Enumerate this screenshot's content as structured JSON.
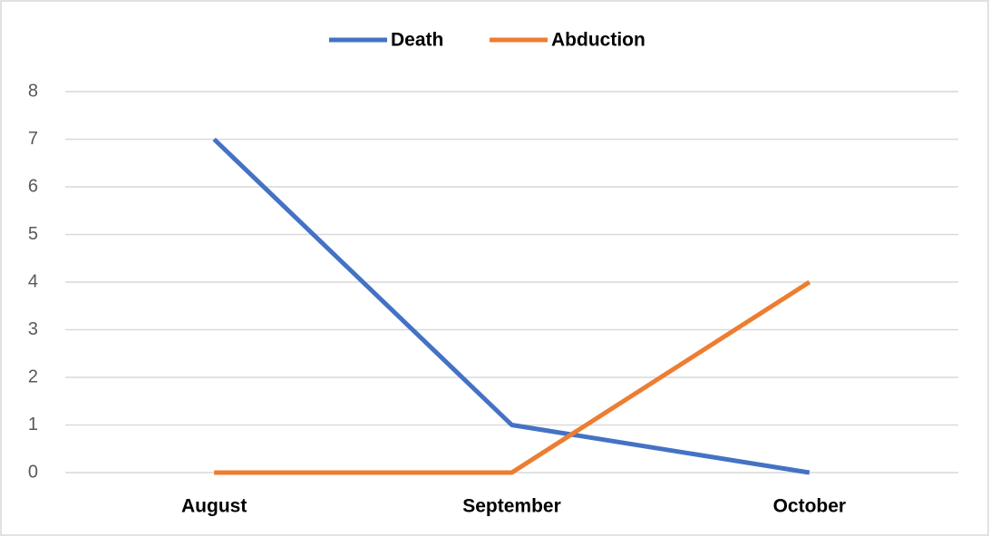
{
  "chart_data": {
    "type": "line",
    "categories": [
      "August",
      "September",
      "October"
    ],
    "series": [
      {
        "name": "Death",
        "color": "#4472c4",
        "values": [
          7,
          1,
          0
        ]
      },
      {
        "name": "Abduction",
        "color": "#ed7d31",
        "values": [
          0,
          0,
          4
        ]
      }
    ],
    "ylim": [
      0,
      8
    ],
    "yticks": [
      0,
      1,
      2,
      3,
      4,
      5,
      6,
      7,
      8
    ],
    "grid": true,
    "legend": "top"
  }
}
